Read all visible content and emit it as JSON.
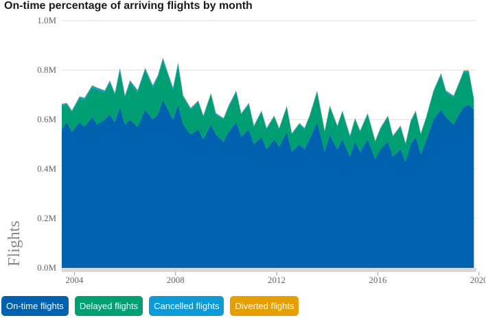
{
  "chart_data": {
    "type": "area",
    "stacked": true,
    "title": "On-time percentage of arriving flights by month",
    "ylabel": "Flights",
    "xlabel": "",
    "xlim": [
      2003.5,
      2019.9
    ],
    "ylim": [
      0,
      1000000
    ],
    "y_ticks": [
      {
        "value": 0,
        "label": "0.0M"
      },
      {
        "value": 200000,
        "label": "0.2M"
      },
      {
        "value": 400000,
        "label": "0.4M"
      },
      {
        "value": 600000,
        "label": "0.6M"
      },
      {
        "value": 800000,
        "label": "0.8M"
      },
      {
        "value": 1000000,
        "label": "1.0M"
      }
    ],
    "x_ticks": [
      {
        "value": 2004,
        "label": "2004"
      },
      {
        "value": 2008,
        "label": "2008"
      },
      {
        "value": 2012,
        "label": "2012"
      },
      {
        "value": 2016,
        "label": "2016"
      },
      {
        "value": 2020,
        "label": "2020"
      }
    ],
    "series": [
      {
        "name": "On-time flights",
        "color": "#0062af",
        "points": [
          [
            2003.5,
            560000
          ],
          [
            2003.7,
            590000
          ],
          [
            2003.9,
            550000
          ],
          [
            2004.2,
            590000
          ],
          [
            2004.4,
            570000
          ],
          [
            2004.7,
            610000
          ],
          [
            2004.9,
            580000
          ],
          [
            2005.2,
            600000
          ],
          [
            2005.4,
            620000
          ],
          [
            2005.6,
            590000
          ],
          [
            2005.8,
            650000
          ],
          [
            2006.0,
            580000
          ],
          [
            2006.2,
            600000
          ],
          [
            2006.5,
            570000
          ],
          [
            2006.8,
            640000
          ],
          [
            2007.1,
            600000
          ],
          [
            2007.3,
            620000
          ],
          [
            2007.5,
            680000
          ],
          [
            2007.7,
            640000
          ],
          [
            2007.9,
            600000
          ],
          [
            2008.1,
            660000
          ],
          [
            2008.3,
            580000
          ],
          [
            2008.6,
            540000
          ],
          [
            2008.9,
            560000
          ],
          [
            2009.1,
            520000
          ],
          [
            2009.4,
            580000
          ],
          [
            2009.6,
            540000
          ],
          [
            2009.9,
            510000
          ],
          [
            2010.1,
            550000
          ],
          [
            2010.4,
            590000
          ],
          [
            2010.6,
            530000
          ],
          [
            2010.9,
            560000
          ],
          [
            2011.1,
            500000
          ],
          [
            2011.4,
            530000
          ],
          [
            2011.6,
            480000
          ],
          [
            2011.9,
            520000
          ],
          [
            2012.1,
            490000
          ],
          [
            2012.4,
            550000
          ],
          [
            2012.6,
            470000
          ],
          [
            2012.9,
            500000
          ],
          [
            2013.1,
            480000
          ],
          [
            2013.3,
            520000
          ],
          [
            2013.6,
            590000
          ],
          [
            2013.9,
            470000
          ],
          [
            2014.1,
            540000
          ],
          [
            2014.4,
            480000
          ],
          [
            2014.6,
            520000
          ],
          [
            2014.9,
            450000
          ],
          [
            2015.1,
            510000
          ],
          [
            2015.3,
            470000
          ],
          [
            2015.6,
            520000
          ],
          [
            2015.9,
            440000
          ],
          [
            2016.1,
            480000
          ],
          [
            2016.4,
            510000
          ],
          [
            2016.6,
            450000
          ],
          [
            2016.9,
            480000
          ],
          [
            2017.1,
            430000
          ],
          [
            2017.3,
            500000
          ],
          [
            2017.5,
            530000
          ],
          [
            2017.7,
            460000
          ],
          [
            2017.9,
            510000
          ],
          [
            2018.2,
            600000
          ],
          [
            2018.5,
            640000
          ],
          [
            2018.7,
            610000
          ],
          [
            2019.0,
            580000
          ],
          [
            2019.2,
            620000
          ],
          [
            2019.4,
            650000
          ],
          [
            2019.6,
            660000
          ],
          [
            2019.8,
            640000
          ]
        ]
      },
      {
        "name": "Delayed flights",
        "color": "#009e73",
        "points": [
          [
            2003.5,
            95000
          ],
          [
            2003.7,
            70000
          ],
          [
            2003.9,
            80000
          ],
          [
            2004.2,
            95000
          ],
          [
            2004.4,
            110000
          ],
          [
            2004.7,
            120000
          ],
          [
            2004.9,
            140000
          ],
          [
            2005.2,
            110000
          ],
          [
            2005.4,
            130000
          ],
          [
            2005.6,
            110000
          ],
          [
            2005.8,
            150000
          ],
          [
            2006.0,
            110000
          ],
          [
            2006.2,
            150000
          ],
          [
            2006.5,
            140000
          ],
          [
            2006.8,
            160000
          ],
          [
            2007.1,
            130000
          ],
          [
            2007.3,
            150000
          ],
          [
            2007.5,
            160000
          ],
          [
            2007.7,
            140000
          ],
          [
            2007.9,
            120000
          ],
          [
            2008.1,
            160000
          ],
          [
            2008.3,
            110000
          ],
          [
            2008.6,
            100000
          ],
          [
            2008.9,
            110000
          ],
          [
            2009.1,
            90000
          ],
          [
            2009.4,
            120000
          ],
          [
            2009.6,
            80000
          ],
          [
            2009.9,
            90000
          ],
          [
            2010.1,
            100000
          ],
          [
            2010.4,
            120000
          ],
          [
            2010.6,
            90000
          ],
          [
            2010.9,
            100000
          ],
          [
            2011.1,
            70000
          ],
          [
            2011.4,
            100000
          ],
          [
            2011.6,
            80000
          ],
          [
            2011.9,
            90000
          ],
          [
            2012.1,
            70000
          ],
          [
            2012.4,
            100000
          ],
          [
            2012.6,
            70000
          ],
          [
            2012.9,
            80000
          ],
          [
            2013.1,
            80000
          ],
          [
            2013.3,
            90000
          ],
          [
            2013.6,
            120000
          ],
          [
            2013.9,
            80000
          ],
          [
            2014.1,
            110000
          ],
          [
            2014.4,
            90000
          ],
          [
            2014.6,
            110000
          ],
          [
            2014.9,
            80000
          ],
          [
            2015.1,
            90000
          ],
          [
            2015.3,
            80000
          ],
          [
            2015.6,
            100000
          ],
          [
            2015.9,
            70000
          ],
          [
            2016.1,
            80000
          ],
          [
            2016.4,
            100000
          ],
          [
            2016.6,
            80000
          ],
          [
            2016.9,
            90000
          ],
          [
            2017.1,
            70000
          ],
          [
            2017.3,
            90000
          ],
          [
            2017.5,
            100000
          ],
          [
            2017.7,
            80000
          ],
          [
            2017.9,
            90000
          ],
          [
            2018.2,
            110000
          ],
          [
            2018.5,
            140000
          ],
          [
            2018.7,
            100000
          ],
          [
            2019.0,
            110000
          ],
          [
            2019.2,
            120000
          ],
          [
            2019.4,
            140000
          ],
          [
            2019.6,
            130000
          ],
          [
            2019.8,
            40000
          ]
        ]
      },
      {
        "name": "Cancelled flights",
        "color": "#0d9bd8",
        "points": [
          [
            2003.5,
            7000
          ],
          [
            2003.7,
            6000
          ],
          [
            2003.9,
            6000
          ],
          [
            2004.2,
            7000
          ],
          [
            2004.4,
            7000
          ],
          [
            2004.7,
            7000
          ],
          [
            2004.9,
            8000
          ],
          [
            2005.2,
            7000
          ],
          [
            2005.4,
            7000
          ],
          [
            2005.6,
            7000
          ],
          [
            2005.8,
            8000
          ],
          [
            2006.0,
            7000
          ],
          [
            2006.2,
            8000
          ],
          [
            2006.5,
            8000
          ],
          [
            2006.8,
            8000
          ],
          [
            2007.1,
            8000
          ],
          [
            2007.3,
            8000
          ],
          [
            2007.5,
            9000
          ],
          [
            2007.7,
            8000
          ],
          [
            2007.9,
            8000
          ],
          [
            2008.1,
            9000
          ],
          [
            2008.3,
            7000
          ],
          [
            2008.6,
            6000
          ],
          [
            2008.9,
            6000
          ],
          [
            2009.1,
            6000
          ],
          [
            2009.4,
            6000
          ],
          [
            2009.6,
            5000
          ],
          [
            2009.9,
            5000
          ],
          [
            2010.1,
            6000
          ],
          [
            2010.4,
            6000
          ],
          [
            2010.6,
            5000
          ],
          [
            2010.9,
            6000
          ],
          [
            2011.1,
            5000
          ],
          [
            2011.4,
            5000
          ],
          [
            2011.6,
            5000
          ],
          [
            2011.9,
            5000
          ],
          [
            2012.1,
            5000
          ],
          [
            2012.4,
            5000
          ],
          [
            2012.6,
            4000
          ],
          [
            2012.9,
            5000
          ],
          [
            2013.1,
            5000
          ],
          [
            2013.3,
            5000
          ],
          [
            2013.6,
            6000
          ],
          [
            2013.9,
            5000
          ],
          [
            2014.1,
            6000
          ],
          [
            2014.4,
            5000
          ],
          [
            2014.6,
            5000
          ],
          [
            2014.9,
            5000
          ],
          [
            2015.1,
            5000
          ],
          [
            2015.3,
            5000
          ],
          [
            2015.6,
            5000
          ],
          [
            2015.9,
            4000
          ],
          [
            2016.1,
            5000
          ],
          [
            2016.4,
            5000
          ],
          [
            2016.6,
            4000
          ],
          [
            2016.9,
            5000
          ],
          [
            2017.1,
            4000
          ],
          [
            2017.3,
            5000
          ],
          [
            2017.5,
            5000
          ],
          [
            2017.7,
            4000
          ],
          [
            2017.9,
            5000
          ],
          [
            2018.2,
            6000
          ],
          [
            2018.5,
            6000
          ],
          [
            2018.7,
            6000
          ],
          [
            2019.0,
            6000
          ],
          [
            2019.2,
            6000
          ],
          [
            2019.4,
            7000
          ],
          [
            2019.6,
            7000
          ],
          [
            2019.8,
            5000
          ]
        ]
      },
      {
        "name": "Diverted flights",
        "color": "#e69f00",
        "points": [
          [
            2003.5,
            1500
          ],
          [
            2003.7,
            1500
          ],
          [
            2003.9,
            1500
          ],
          [
            2004.2,
            1500
          ],
          [
            2004.4,
            1500
          ],
          [
            2004.7,
            1500
          ],
          [
            2004.9,
            1500
          ],
          [
            2005.2,
            1500
          ],
          [
            2005.4,
            1500
          ],
          [
            2005.6,
            1500
          ],
          [
            2005.8,
            1500
          ],
          [
            2006.0,
            1500
          ],
          [
            2006.2,
            1500
          ],
          [
            2006.5,
            1500
          ],
          [
            2006.8,
            1500
          ],
          [
            2007.1,
            1500
          ],
          [
            2007.3,
            1500
          ],
          [
            2007.5,
            1500
          ],
          [
            2007.7,
            1500
          ],
          [
            2007.9,
            1500
          ],
          [
            2008.1,
            1500
          ],
          [
            2008.3,
            1500
          ],
          [
            2008.6,
            1500
          ],
          [
            2008.9,
            1500
          ],
          [
            2009.1,
            1500
          ],
          [
            2009.4,
            1500
          ],
          [
            2009.6,
            1500
          ],
          [
            2009.9,
            1500
          ],
          [
            2010.1,
            1500
          ],
          [
            2010.4,
            1500
          ],
          [
            2010.6,
            1500
          ],
          [
            2010.9,
            1500
          ],
          [
            2011.1,
            1500
          ],
          [
            2011.4,
            1500
          ],
          [
            2011.6,
            1500
          ],
          [
            2011.9,
            1500
          ],
          [
            2012.1,
            1500
          ],
          [
            2012.4,
            1500
          ],
          [
            2012.6,
            1500
          ],
          [
            2012.9,
            1500
          ],
          [
            2013.1,
            1500
          ],
          [
            2013.3,
            1500
          ],
          [
            2013.6,
            1500
          ],
          [
            2013.9,
            1500
          ],
          [
            2014.1,
            1500
          ],
          [
            2014.4,
            1500
          ],
          [
            2014.6,
            1500
          ],
          [
            2014.9,
            1500
          ],
          [
            2015.1,
            1500
          ],
          [
            2015.3,
            1500
          ],
          [
            2015.6,
            1500
          ],
          [
            2015.9,
            1500
          ],
          [
            2016.1,
            1500
          ],
          [
            2016.4,
            1500
          ],
          [
            2016.6,
            1500
          ],
          [
            2016.9,
            1500
          ],
          [
            2017.1,
            1500
          ],
          [
            2017.3,
            1500
          ],
          [
            2017.5,
            1500
          ],
          [
            2017.7,
            1500
          ],
          [
            2017.9,
            1500
          ],
          [
            2018.2,
            1500
          ],
          [
            2018.5,
            1500
          ],
          [
            2018.7,
            1500
          ],
          [
            2019.0,
            1500
          ],
          [
            2019.2,
            1500
          ],
          [
            2019.4,
            1500
          ],
          [
            2019.6,
            1500
          ],
          [
            2019.8,
            1500
          ]
        ]
      }
    ]
  }
}
